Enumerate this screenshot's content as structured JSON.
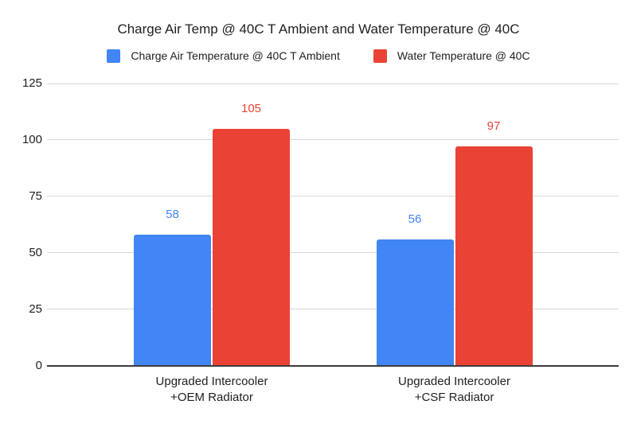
{
  "title": "Charge Air Temp @ 40C T Ambient and Water Temperature @ 40C",
  "chart_data": {
    "type": "bar",
    "title": "Charge Air Temp @ 40C T Ambient and Water Temperature @ 40C",
    "categories": [
      "Upgraded Intercooler\n+OEM Radiator",
      "Upgraded Intercooler\n+CSF Radiator"
    ],
    "series": [
      {
        "name": "Charge Air Temperature @ 40C T Ambient",
        "color": "#4285F4",
        "values": [
          58,
          56
        ]
      },
      {
        "name": "Water Temperature @ 40C",
        "color": "#EA4335",
        "values": [
          105,
          97
        ]
      }
    ],
    "xlabel": "",
    "ylabel": "",
    "ylim": [
      0,
      125
    ],
    "yticks": [
      0,
      25,
      50,
      75,
      100,
      125
    ],
    "grid": true,
    "legend_position": "top",
    "data_labels": true,
    "palette": {
      "background": "#ffffff",
      "gridline": "#d9d9d9",
      "axis_line": "#3c3c3c",
      "text": "#212121"
    }
  }
}
